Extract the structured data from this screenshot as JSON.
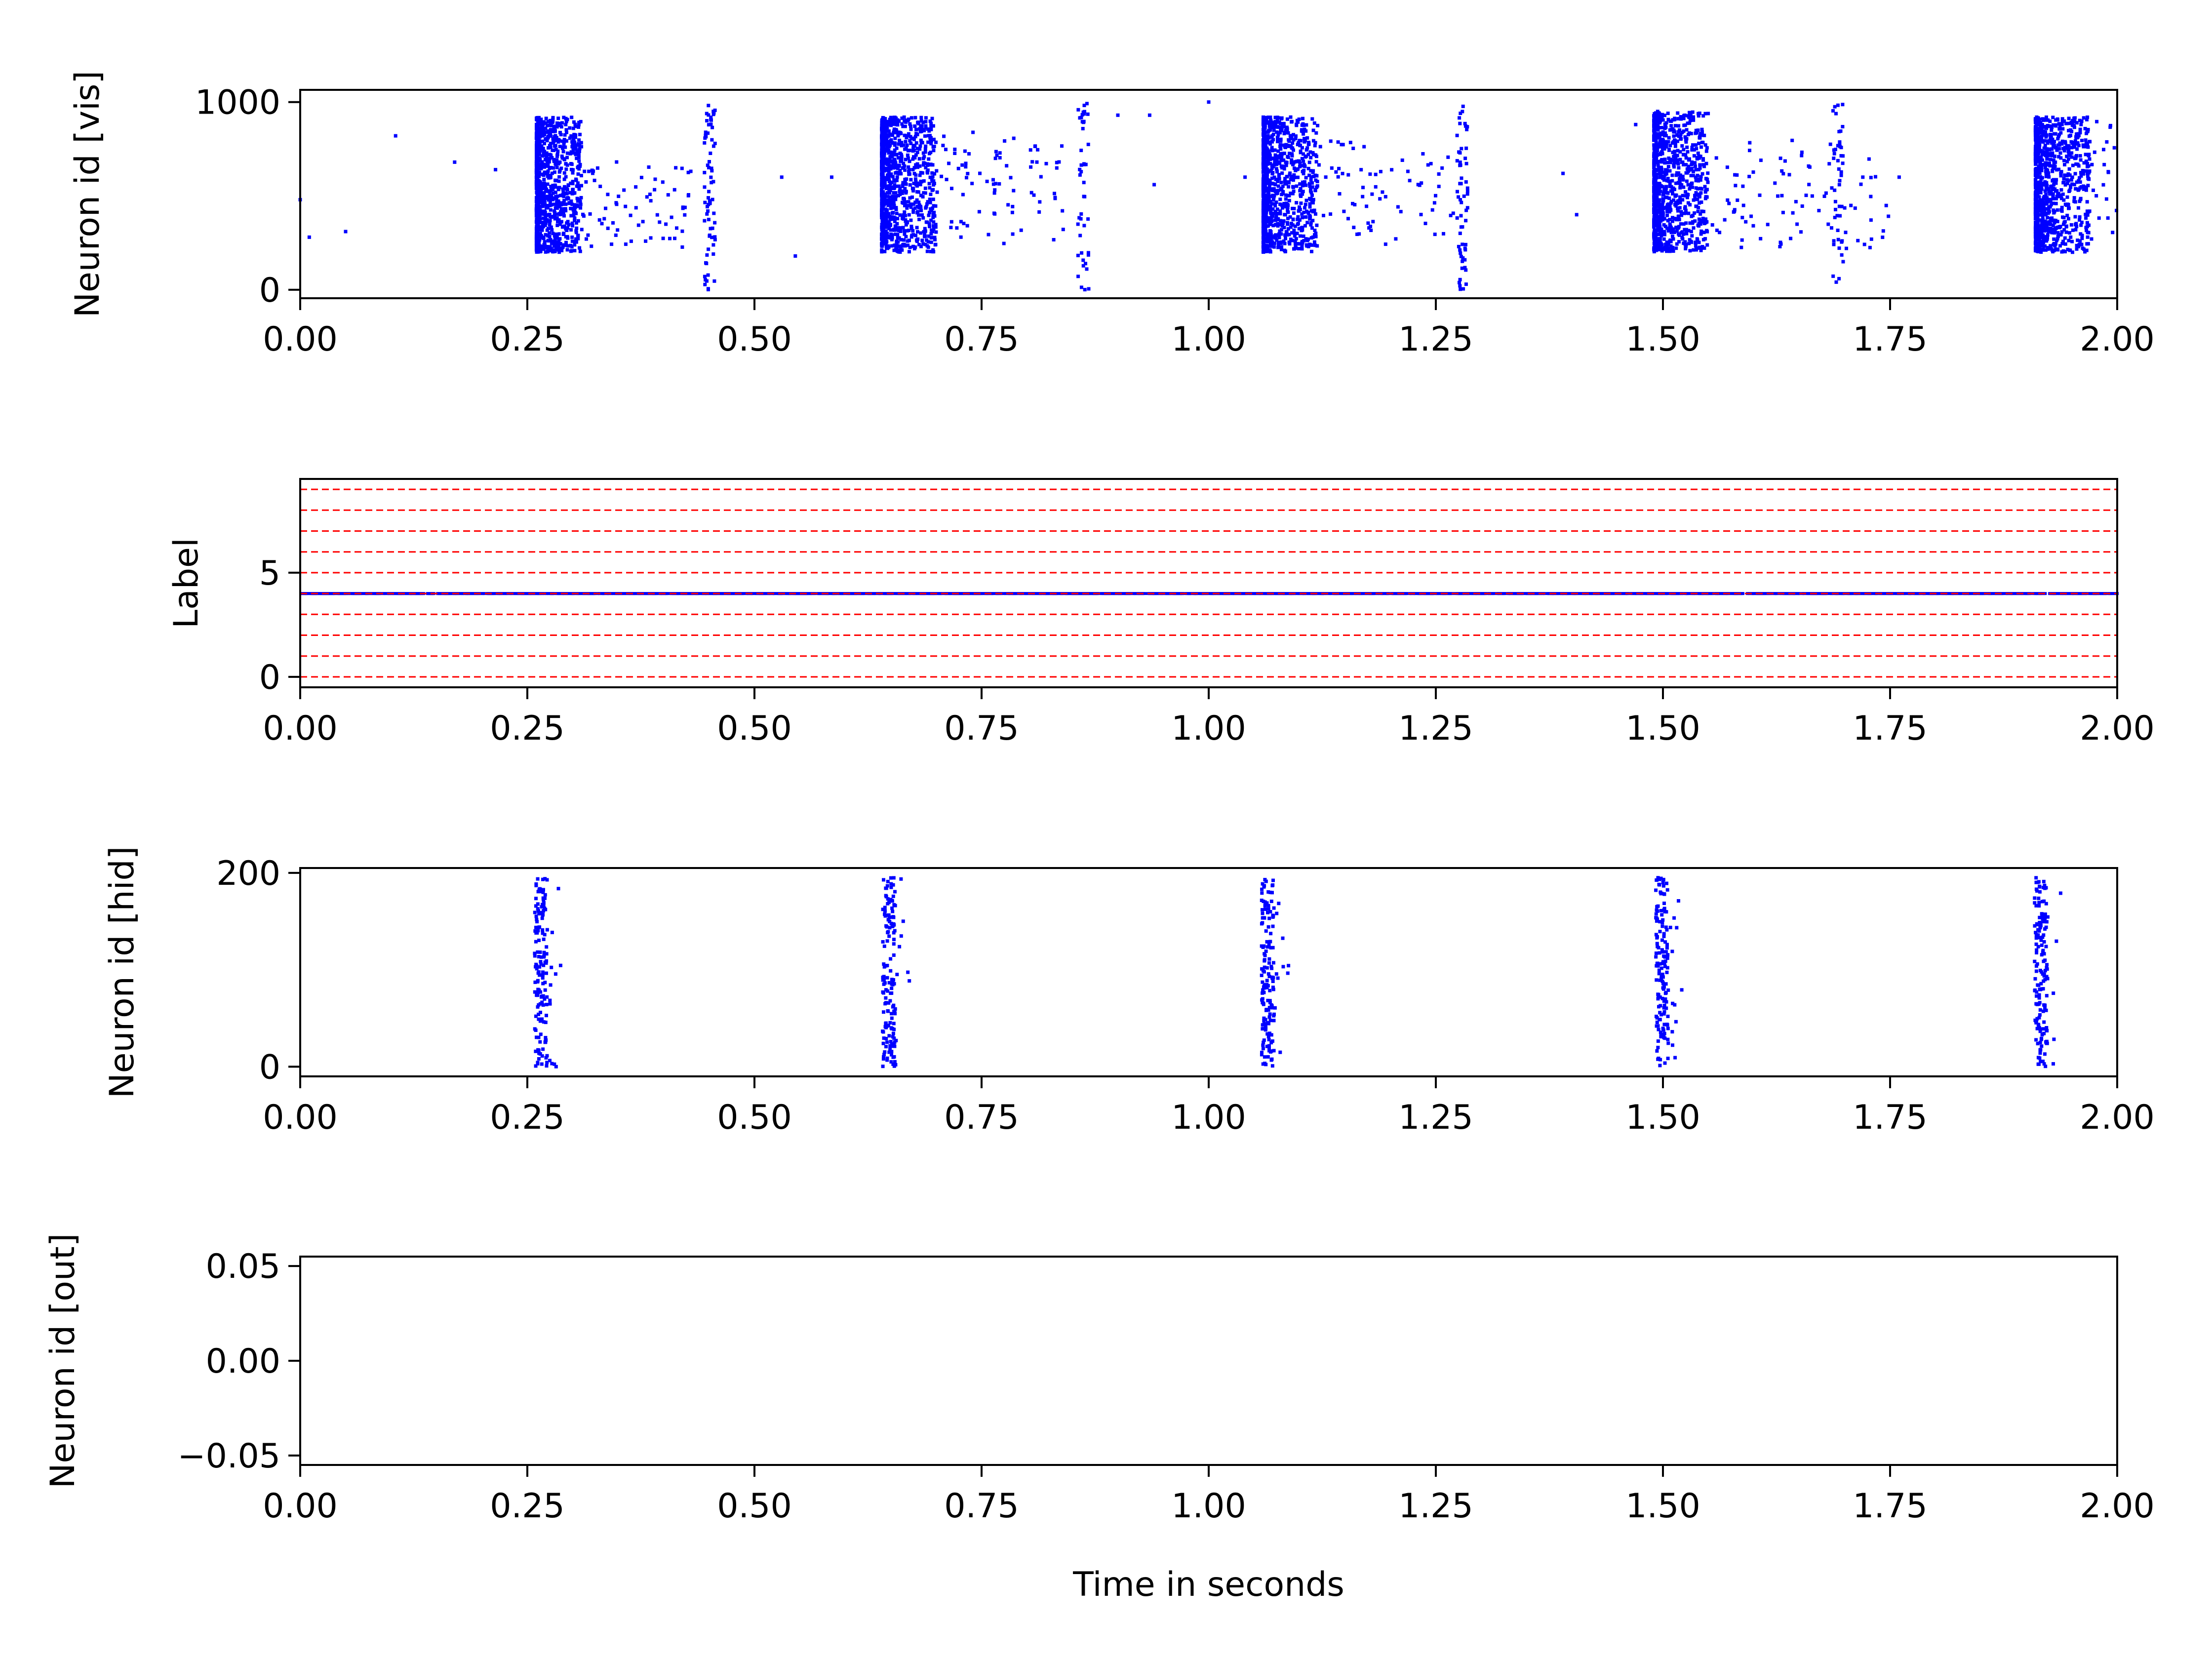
{
  "figure": {
    "xlabel": "Time in seconds"
  },
  "colors": {
    "spike": "#0000ff",
    "label_grid": "#ff0000",
    "axes": "#000000",
    "background": "#ffffff"
  },
  "chart_data": [
    {
      "type": "scatter",
      "ylabel": "Neuron id [vis]",
      "xlim": [
        0,
        2
      ],
      "ylim": [
        -45,
        1065
      ],
      "xticks": [
        "0.00",
        "0.25",
        "0.50",
        "0.75",
        "1.00",
        "1.25",
        "1.50",
        "1.75",
        "2.00"
      ],
      "yticks": [
        {
          "value": 0,
          "label": "0"
        },
        {
          "value": 1000,
          "label": "1000"
        }
      ],
      "bursts": [
        {
          "x_start": 0.26,
          "x_end": 0.31,
          "y_min": 200,
          "y_max": 920,
          "count": 950
        },
        {
          "x_start": 0.64,
          "x_end": 0.7,
          "y_min": 200,
          "y_max": 920,
          "count": 950
        },
        {
          "x_start": 1.06,
          "x_end": 1.12,
          "y_min": 200,
          "y_max": 920,
          "count": 950
        },
        {
          "x_start": 1.49,
          "x_end": 1.55,
          "y_min": 200,
          "y_max": 950,
          "count": 950
        },
        {
          "x_start": 1.91,
          "x_end": 1.97,
          "y_min": 200,
          "y_max": 920,
          "count": 950
        }
      ],
      "tails": [
        {
          "x_start": 0.31,
          "x_end": 0.43,
          "y_min": 220,
          "y_max": 700,
          "count": 70
        },
        {
          "x_start": 0.7,
          "x_end": 0.84,
          "y_min": 220,
          "y_max": 850,
          "count": 80
        },
        {
          "x_start": 1.12,
          "x_end": 1.27,
          "y_min": 220,
          "y_max": 800,
          "count": 70
        },
        {
          "x_start": 1.55,
          "x_end": 1.75,
          "y_min": 220,
          "y_max": 800,
          "count": 90
        },
        {
          "x_start": 1.97,
          "x_end": 2.0,
          "y_min": 220,
          "y_max": 900,
          "count": 20
        }
      ],
      "columns": [
        {
          "x": 0.451,
          "y_min": 0,
          "y_max": 1020,
          "count": 70
        },
        {
          "x": 0.862,
          "y_min": 0,
          "y_max": 1000,
          "count": 45
        },
        {
          "x": 1.279,
          "y_min": 0,
          "y_max": 1000,
          "count": 60
        },
        {
          "x": 1.693,
          "y_min": 0,
          "y_max": 1020,
          "count": 40
        }
      ],
      "points": [
        [
          0.0,
          480
        ],
        [
          0.01,
          280
        ],
        [
          0.05,
          310
        ],
        [
          0.105,
          820
        ],
        [
          0.17,
          680
        ],
        [
          0.215,
          640
        ],
        [
          0.545,
          180
        ],
        [
          0.585,
          600
        ],
        [
          0.935,
          930
        ],
        [
          0.9,
          930
        ],
        [
          1.0,
          1000
        ],
        [
          1.39,
          620
        ],
        [
          1.405,
          400
        ],
        [
          0.53,
          600
        ],
        [
          1.76,
          600
        ],
        [
          1.72,
          600
        ],
        [
          0.94,
          560
        ],
        [
          1.04,
          600
        ],
        [
          1.47,
          880
        ]
      ]
    },
    {
      "type": "scatter",
      "ylabel": "Label",
      "xlim": [
        0,
        2
      ],
      "ylim": [
        -0.5,
        9.5
      ],
      "xticks": [
        "0.00",
        "0.25",
        "0.50",
        "0.75",
        "1.00",
        "1.25",
        "1.50",
        "1.75",
        "2.00"
      ],
      "yticks": [
        {
          "value": 0,
          "label": "0"
        },
        {
          "value": 5,
          "label": "5"
        }
      ],
      "gridlines": [
        0,
        1,
        2,
        3,
        4,
        5,
        6,
        7,
        8,
        9
      ],
      "label_value": 4,
      "label_x_start": 0.0,
      "label_x_end": 2.0
    },
    {
      "type": "scatter",
      "ylabel": "Neuron id [hid]",
      "xlim": [
        0,
        2
      ],
      "ylim": [
        -10,
        205
      ],
      "xticks": [
        "0.00",
        "0.25",
        "0.50",
        "0.75",
        "1.00",
        "1.25",
        "1.50",
        "1.75",
        "2.00"
      ],
      "yticks": [
        {
          "value": 0,
          "label": "0"
        },
        {
          "value": 200,
          "label": "200"
        }
      ],
      "bursts": [
        {
          "x_center": 0.265,
          "y_min": 0,
          "y_max": 195,
          "count": 160
        },
        {
          "x_center": 0.648,
          "y_min": 0,
          "y_max": 195,
          "count": 160
        },
        {
          "x_center": 1.065,
          "y_min": 0,
          "y_max": 195,
          "count": 160
        },
        {
          "x_center": 1.499,
          "y_min": 0,
          "y_max": 195,
          "count": 160
        },
        {
          "x_center": 1.916,
          "y_min": 0,
          "y_max": 195,
          "count": 160
        }
      ]
    },
    {
      "type": "scatter",
      "ylabel": "Neuron id [out]",
      "xlim": [
        0,
        2
      ],
      "ylim": [
        -0.055,
        0.055
      ],
      "xticks": [
        "0.00",
        "0.25",
        "0.50",
        "0.75",
        "1.00",
        "1.25",
        "1.50",
        "1.75",
        "2.00"
      ],
      "yticks": [
        {
          "value": 0.05,
          "label": "0.05"
        },
        {
          "value": 0.0,
          "label": "0.00"
        },
        {
          "value": -0.05,
          "label": "−0.05"
        }
      ],
      "points": []
    }
  ]
}
